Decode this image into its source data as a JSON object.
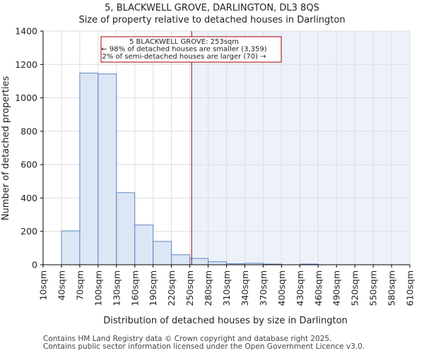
{
  "chart_data": {
    "type": "bar",
    "title": "5, BLACKWELL GROVE, DARLINGTON, DL3 8QS",
    "subtitle": "Size of property relative to detached houses in Darlington",
    "xlabel": "Distribution of detached houses by size in Darlington",
    "ylabel": "Number of detached properties",
    "ylim": [
      0,
      1400
    ],
    "yticks": [
      0,
      200,
      400,
      600,
      800,
      1000,
      1200,
      1400
    ],
    "xlim": [
      10,
      610
    ],
    "bin_width": 30,
    "tick_labels": [
      "10sqm",
      "40sqm",
      "70sqm",
      "100sqm",
      "130sqm",
      "160sqm",
      "190sqm",
      "220sqm",
      "250sqm",
      "280sqm",
      "310sqm",
      "340sqm",
      "370sqm",
      "400sqm",
      "430sqm",
      "460sqm",
      "490sqm",
      "520sqm",
      "550sqm",
      "580sqm",
      "610sqm"
    ],
    "bins": [
      {
        "start": 10,
        "value": 0
      },
      {
        "start": 40,
        "value": 203
      },
      {
        "start": 70,
        "value": 1148
      },
      {
        "start": 100,
        "value": 1143
      },
      {
        "start": 130,
        "value": 432
      },
      {
        "start": 160,
        "value": 238
      },
      {
        "start": 190,
        "value": 140
      },
      {
        "start": 220,
        "value": 60
      },
      {
        "start": 250,
        "value": 38
      },
      {
        "start": 280,
        "value": 18
      },
      {
        "start": 310,
        "value": 6
      },
      {
        "start": 340,
        "value": 9
      },
      {
        "start": 370,
        "value": 4
      },
      {
        "start": 400,
        "value": 0
      },
      {
        "start": 430,
        "value": 4
      },
      {
        "start": 460,
        "value": 0
      },
      {
        "start": 490,
        "value": 0
      },
      {
        "start": 520,
        "value": 0
      },
      {
        "start": 550,
        "value": 0
      },
      {
        "start": 580,
        "value": 0
      }
    ],
    "marker": {
      "value": 253,
      "label_lines": [
        "5 BLACKWELL GROVE: 253sqm",
        "← 98% of detached houses are smaller (3,359)",
        "2% of semi-detached houses are larger (70) →"
      ]
    },
    "grid": true,
    "colors": {
      "bar_fill": "#dce6f4",
      "bar_edge": "#5b87c5",
      "highlight_region": "#edf1fa",
      "marker_line": "#990000",
      "grid": "#dddddd",
      "annotation_edge": "#aa0000"
    }
  },
  "footer": {
    "line1": "Contains HM Land Registry data © Crown copyright and database right 2025.",
    "line2": "Contains public sector information licensed under the Open Government Licence v3.0."
  }
}
